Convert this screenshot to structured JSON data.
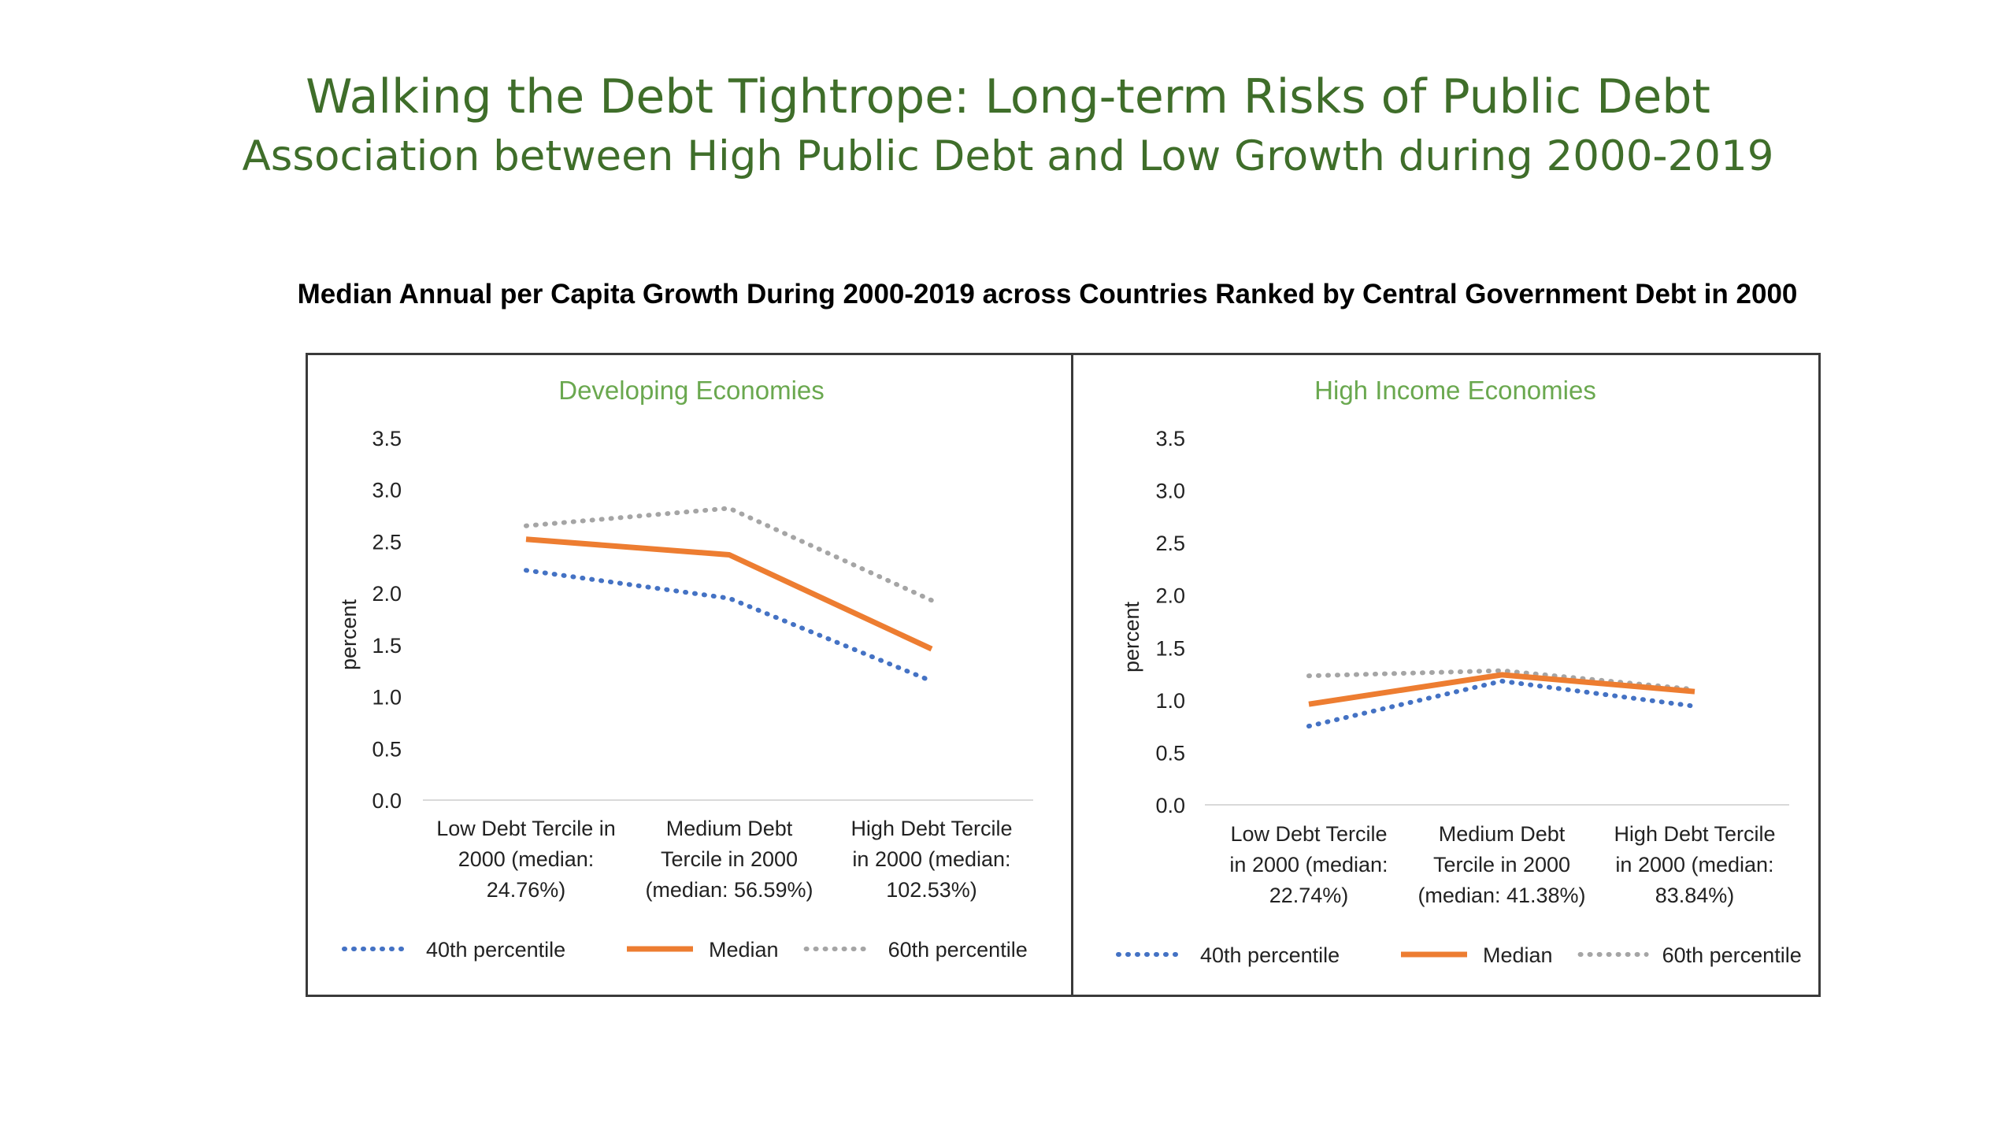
{
  "title": "Walking the Debt Tightrope: Long-term Risks of Public Debt",
  "subtitle": "Association between High Public Debt and Low Growth during 2000-2019",
  "chart_heading": "Median Annual per Capita Growth During 2000-2019 across Countries Ranked by Central Government Debt in 2000",
  "colors": {
    "title": "#3f6e2a",
    "panel_title": "#6aa84f",
    "p40": "#4472c4",
    "median": "#ed7d31",
    "p60": "#a5a5a5"
  },
  "chart_data": [
    {
      "type": "line",
      "title": "Developing Economies",
      "ylabel": "percent",
      "ylim": [
        0,
        3.5
      ],
      "yticks": [
        "0.0",
        "0.5",
        "1.0",
        "1.5",
        "2.0",
        "2.5",
        "3.0",
        "3.5"
      ],
      "categories": [
        [
          "Low Debt Tercile in",
          "2000 (median:",
          "24.76%)"
        ],
        [
          "Medium Debt",
          "Tercile in 2000",
          "(median: 56.59%)"
        ],
        [
          "High Debt Tercile",
          "in 2000 (median:",
          "102.53%)"
        ]
      ],
      "series": [
        {
          "name": "40th percentile",
          "style": "dotted",
          "values": [
            2.22,
            1.95,
            1.15
          ]
        },
        {
          "name": "Median",
          "style": "solid",
          "values": [
            2.52,
            2.37,
            1.46
          ]
        },
        {
          "name": "60th percentile",
          "style": "dotted",
          "values": [
            2.65,
            2.82,
            1.93
          ]
        }
      ],
      "legend": "bottom",
      "grid": false
    },
    {
      "type": "line",
      "title": "High Income Economies",
      "ylabel": "percent",
      "ylim": [
        0,
        3.5
      ],
      "yticks": [
        "0.0",
        "0.5",
        "1.0",
        "1.5",
        "2.0",
        "2.5",
        "3.0",
        "3.5"
      ],
      "categories": [
        [
          "Low Debt Tercile",
          "in 2000 (median:",
          "22.74%)"
        ],
        [
          "Medium Debt",
          "Tercile in 2000",
          "(median: 41.38%)"
        ],
        [
          "High Debt Tercile",
          "in 2000 (median:",
          "83.84%)"
        ]
      ],
      "series": [
        {
          "name": "40th percentile",
          "style": "dotted",
          "values": [
            0.75,
            1.18,
            0.94
          ]
        },
        {
          "name": "Median",
          "style": "solid",
          "values": [
            0.96,
            1.24,
            1.08
          ]
        },
        {
          "name": "60th percentile",
          "style": "dotted",
          "values": [
            1.23,
            1.28,
            1.1
          ]
        }
      ],
      "legend": "bottom",
      "grid": false
    }
  ]
}
